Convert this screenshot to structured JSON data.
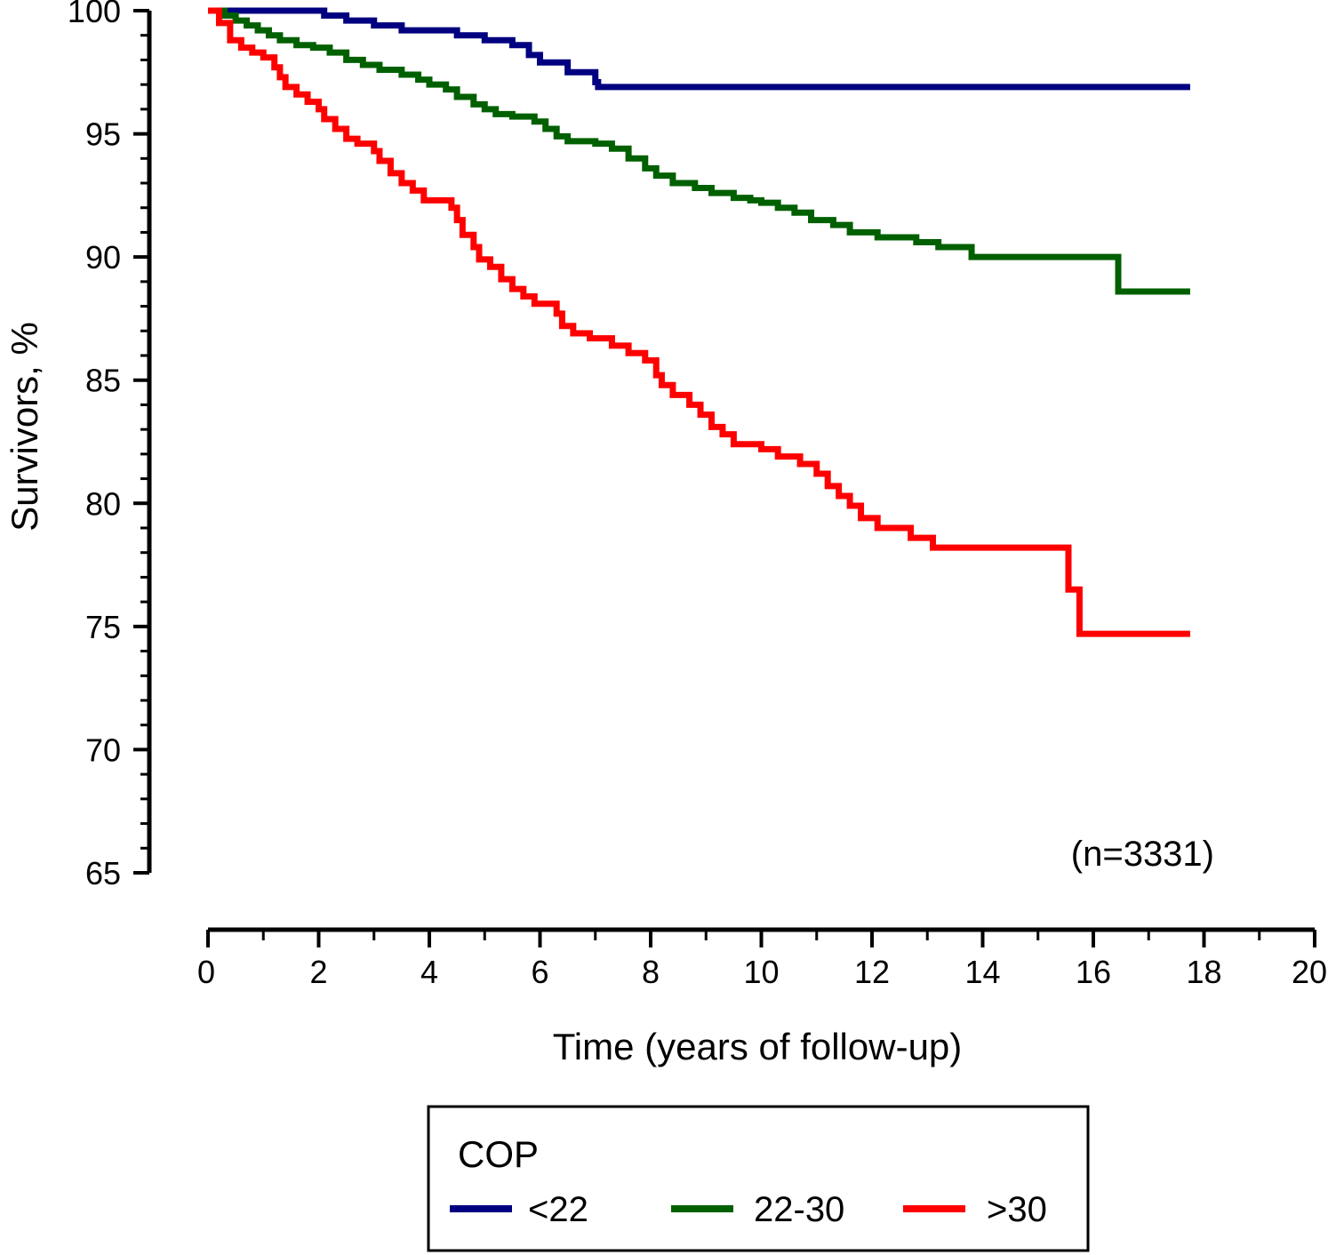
{
  "chart_data": {
    "type": "line",
    "subtype": "kaplan-meier step curve",
    "title": "",
    "xlabel": "Time (years of follow-up)",
    "ylabel": "Survivors, %",
    "xlim": [
      0,
      20
    ],
    "ylim": [
      65,
      100
    ],
    "x_ticks": [
      0,
      2,
      4,
      6,
      8,
      10,
      12,
      14,
      16,
      18,
      20
    ],
    "x_tick_labels": [
      "0",
      "2",
      "4",
      "6",
      "8",
      "10",
      "12",
      "14",
      "16",
      "18",
      "20"
    ],
    "y_ticks": [
      65,
      70,
      75,
      80,
      85,
      90,
      95,
      100
    ],
    "y_tick_labels": [
      "65",
      "70",
      "75",
      "80",
      "85",
      "90",
      "95",
      "100"
    ],
    "annotation": "(n=3331)",
    "grid": false,
    "legend": {
      "title": "COP",
      "placement": "bottom",
      "entries": [
        "<22",
        "22-30",
        ">30"
      ]
    },
    "series": [
      {
        "name": "<22",
        "color": "#000080",
        "points": [
          [
            0,
            100
          ],
          [
            2.0,
            100
          ],
          [
            2.1,
            99.8
          ],
          [
            2.5,
            99.6
          ],
          [
            3.0,
            99.4
          ],
          [
            3.5,
            99.2
          ],
          [
            4.5,
            99.0
          ],
          [
            5.0,
            98.8
          ],
          [
            5.5,
            98.6
          ],
          [
            5.8,
            98.2
          ],
          [
            6.0,
            97.9
          ],
          [
            6.5,
            97.5
          ],
          [
            7.0,
            97.1
          ],
          [
            7.05,
            96.9
          ],
          [
            17.75,
            96.9
          ]
        ]
      },
      {
        "name": "22-30",
        "color": "#006000",
        "points": [
          [
            0,
            100
          ],
          [
            0.3,
            99.8
          ],
          [
            0.5,
            99.6
          ],
          [
            0.7,
            99.4
          ],
          [
            0.9,
            99.2
          ],
          [
            1.1,
            99.0
          ],
          [
            1.3,
            98.8
          ],
          [
            1.6,
            98.6
          ],
          [
            1.9,
            98.5
          ],
          [
            2.2,
            98.3
          ],
          [
            2.5,
            98.0
          ],
          [
            2.8,
            97.8
          ],
          [
            3.1,
            97.6
          ],
          [
            3.5,
            97.4
          ],
          [
            3.8,
            97.2
          ],
          [
            4.0,
            97.0
          ],
          [
            4.3,
            96.8
          ],
          [
            4.5,
            96.5
          ],
          [
            4.8,
            96.2
          ],
          [
            5.0,
            96.0
          ],
          [
            5.2,
            95.8
          ],
          [
            5.5,
            95.7
          ],
          [
            5.9,
            95.5
          ],
          [
            6.1,
            95.2
          ],
          [
            6.3,
            94.9
          ],
          [
            6.5,
            94.7
          ],
          [
            7.0,
            94.6
          ],
          [
            7.3,
            94.4
          ],
          [
            7.6,
            94.0
          ],
          [
            7.9,
            93.6
          ],
          [
            8.1,
            93.3
          ],
          [
            8.4,
            93.0
          ],
          [
            8.8,
            92.8
          ],
          [
            9.1,
            92.6
          ],
          [
            9.5,
            92.4
          ],
          [
            9.8,
            92.3
          ],
          [
            10.0,
            92.2
          ],
          [
            10.3,
            92.0
          ],
          [
            10.6,
            91.8
          ],
          [
            10.9,
            91.5
          ],
          [
            11.3,
            91.3
          ],
          [
            11.6,
            91.0
          ],
          [
            12.1,
            90.8
          ],
          [
            12.8,
            90.6
          ],
          [
            13.2,
            90.4
          ],
          [
            13.8,
            90.0
          ],
          [
            16.4,
            90.0
          ],
          [
            16.45,
            88.6
          ],
          [
            17.75,
            88.6
          ]
        ]
      },
      {
        "name": ">30",
        "color": "#ff0000",
        "points": [
          [
            0,
            100
          ],
          [
            0.2,
            99.5
          ],
          [
            0.4,
            98.8
          ],
          [
            0.6,
            98.5
          ],
          [
            0.8,
            98.3
          ],
          [
            1.0,
            98.1
          ],
          [
            1.2,
            97.7
          ],
          [
            1.3,
            97.3
          ],
          [
            1.4,
            96.9
          ],
          [
            1.6,
            96.6
          ],
          [
            1.8,
            96.3
          ],
          [
            2.0,
            96.0
          ],
          [
            2.1,
            95.6
          ],
          [
            2.3,
            95.2
          ],
          [
            2.5,
            94.8
          ],
          [
            2.7,
            94.6
          ],
          [
            3.0,
            94.3
          ],
          [
            3.1,
            93.9
          ],
          [
            3.3,
            93.4
          ],
          [
            3.5,
            93.0
          ],
          [
            3.7,
            92.7
          ],
          [
            3.9,
            92.3
          ],
          [
            4.4,
            92.0
          ],
          [
            4.5,
            91.5
          ],
          [
            4.6,
            90.9
          ],
          [
            4.8,
            90.4
          ],
          [
            4.9,
            89.9
          ],
          [
            5.1,
            89.6
          ],
          [
            5.3,
            89.1
          ],
          [
            5.5,
            88.7
          ],
          [
            5.7,
            88.4
          ],
          [
            5.9,
            88.1
          ],
          [
            6.3,
            87.7
          ],
          [
            6.4,
            87.2
          ],
          [
            6.6,
            86.9
          ],
          [
            6.9,
            86.7
          ],
          [
            7.3,
            86.4
          ],
          [
            7.6,
            86.1
          ],
          [
            7.9,
            85.8
          ],
          [
            8.1,
            85.2
          ],
          [
            8.2,
            84.8
          ],
          [
            8.4,
            84.4
          ],
          [
            8.7,
            84.0
          ],
          [
            8.9,
            83.6
          ],
          [
            9.1,
            83.1
          ],
          [
            9.3,
            82.8
          ],
          [
            9.5,
            82.4
          ],
          [
            10.0,
            82.2
          ],
          [
            10.3,
            81.9
          ],
          [
            10.7,
            81.6
          ],
          [
            11.0,
            81.2
          ],
          [
            11.2,
            80.7
          ],
          [
            11.4,
            80.3
          ],
          [
            11.6,
            79.9
          ],
          [
            11.8,
            79.4
          ],
          [
            12.1,
            79.0
          ],
          [
            12.7,
            78.6
          ],
          [
            13.1,
            78.2
          ],
          [
            15.5,
            78.2
          ],
          [
            15.55,
            76.5
          ],
          [
            15.75,
            74.7
          ],
          [
            17.75,
            74.7
          ]
        ]
      }
    ]
  }
}
